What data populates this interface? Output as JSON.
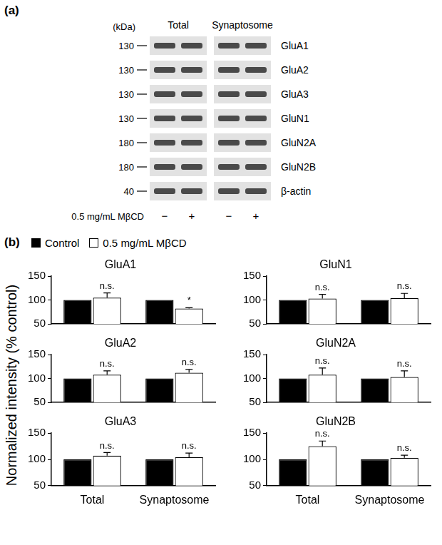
{
  "panel_a": {
    "label": "(a)",
    "unit_label": "(kDa)",
    "groups": [
      "Total",
      "Synaptosome"
    ],
    "rows": [
      {
        "kda": 130,
        "name": "GluA1"
      },
      {
        "kda": 130,
        "name": "GluA2"
      },
      {
        "kda": 130,
        "name": "GluA3"
      },
      {
        "kda": 130,
        "name": "GluN1"
      },
      {
        "kda": 180,
        "name": "GluN2A"
      },
      {
        "kda": 180,
        "name": "GluN2B"
      },
      {
        "kda": 40,
        "name": "β-actin"
      }
    ],
    "treatment": "0.5 mg/mL MβCD",
    "lanes": [
      "−",
      "+",
      "−",
      "+"
    ]
  },
  "panel_b": {
    "label": "(b)",
    "y_label": "Normalized intensity (% control)"
  },
  "chart_data": [
    {
      "type": "bar",
      "title": "GluA1",
      "categories": [
        "Total",
        "Synaptosome"
      ],
      "series": [
        {
          "name": "Control",
          "color": "#000000",
          "values": [
            100,
            100
          ]
        },
        {
          "name": "0.5 mg/mL MβCD",
          "color": "#ffffff",
          "values": [
            105,
            82
          ],
          "errors": [
            10,
            2
          ],
          "annotations": [
            "n.s.",
            "*"
          ]
        }
      ],
      "ylim": [
        50,
        150
      ],
      "yticks": [
        50,
        100,
        150
      ],
      "grid": false,
      "tick_labels": "y"
    },
    {
      "type": "bar",
      "title": "GluN1",
      "categories": [
        "Total",
        "Synaptosome"
      ],
      "series": [
        {
          "name": "Control",
          "color": "#000000",
          "values": [
            100,
            100
          ]
        },
        {
          "name": "0.5 mg/mL MβCD",
          "color": "#ffffff",
          "values": [
            103,
            104
          ],
          "errors": [
            9,
            10
          ],
          "annotations": [
            "n.s.",
            "n.s."
          ]
        }
      ],
      "ylim": [
        50,
        150
      ],
      "yticks": [
        50,
        100,
        150
      ],
      "grid": false,
      "tick_labels": "y"
    },
    {
      "type": "bar",
      "title": "GluA2",
      "categories": [
        "Total",
        "Synaptosome"
      ],
      "series": [
        {
          "name": "Control",
          "color": "#000000",
          "values": [
            100,
            100
          ]
        },
        {
          "name": "0.5 mg/mL MβCD",
          "color": "#ffffff",
          "values": [
            108,
            112
          ],
          "errors": [
            8,
            7
          ],
          "annotations": [
            "n.s.",
            "n.s."
          ]
        }
      ],
      "ylim": [
        50,
        150
      ],
      "yticks": [
        50,
        100,
        150
      ],
      "grid": false,
      "tick_labels": "y"
    },
    {
      "type": "bar",
      "title": "GluN2A",
      "categories": [
        "Total",
        "Synaptosome"
      ],
      "series": [
        {
          "name": "Control",
          "color": "#000000",
          "values": [
            100,
            100
          ]
        },
        {
          "name": "0.5 mg/mL MβCD",
          "color": "#ffffff",
          "values": [
            108,
            103
          ],
          "errors": [
            14,
            13
          ],
          "annotations": [
            "n.s.",
            "n.s."
          ]
        }
      ],
      "ylim": [
        50,
        150
      ],
      "yticks": [
        50,
        100,
        150
      ],
      "grid": false,
      "tick_labels": "y"
    },
    {
      "type": "bar",
      "title": "GluA3",
      "categories": [
        "Total",
        "Synaptosome"
      ],
      "series": [
        {
          "name": "Control",
          "color": "#000000",
          "values": [
            100,
            100
          ]
        },
        {
          "name": "0.5 mg/mL MβCD",
          "color": "#ffffff",
          "values": [
            107,
            104
          ],
          "errors": [
            6,
            8
          ],
          "annotations": [
            "n.s.",
            "n.s."
          ]
        }
      ],
      "ylim": [
        50,
        150
      ],
      "yticks": [
        50,
        100,
        150
      ],
      "grid": false
    },
    {
      "type": "bar",
      "title": "GluN2B",
      "categories": [
        "Total",
        "Synaptosome"
      ],
      "series": [
        {
          "name": "Control",
          "color": "#000000",
          "values": [
            100,
            100
          ]
        },
        {
          "name": "0.5 mg/mL MβCD",
          "color": "#ffffff",
          "values": [
            125,
            103
          ],
          "errors": [
            10,
            5
          ],
          "annotations": [
            "n.s.",
            "n.s."
          ]
        }
      ],
      "ylim": [
        50,
        150
      ],
      "yticks": [
        50,
        100,
        150
      ],
      "grid": false
    }
  ]
}
